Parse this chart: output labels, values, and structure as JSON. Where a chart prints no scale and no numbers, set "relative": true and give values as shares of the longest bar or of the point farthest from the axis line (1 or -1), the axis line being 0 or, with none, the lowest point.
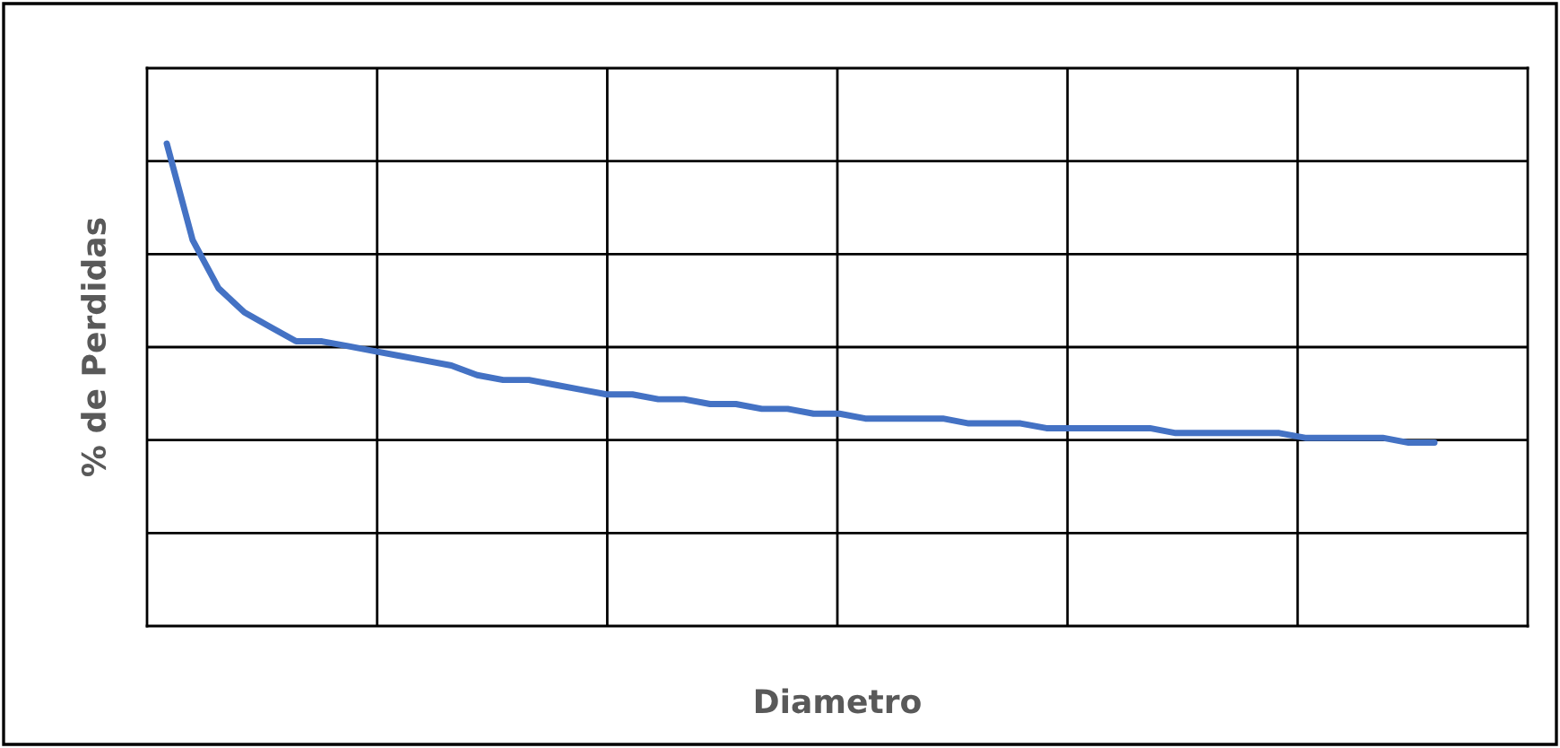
{
  "chart_data": {
    "type": "line",
    "relative": true,
    "xlabel": "Diametro",
    "ylabel": "% de Perdidas",
    "grid": true,
    "marker": "none",
    "line_style": "solid",
    "categories": [
      null,
      null,
      null,
      null,
      null,
      null,
      null,
      null,
      null,
      null,
      null,
      null,
      null,
      null,
      null,
      null,
      null,
      null,
      null,
      null,
      null,
      null,
      null,
      null,
      null,
      null,
      null,
      null,
      null,
      null,
      null,
      null,
      null,
      null,
      null,
      null,
      null,
      null,
      null,
      null,
      null,
      null,
      null,
      null,
      null,
      null,
      null,
      null,
      null,
      null
    ],
    "series": [
      {
        "color": "#4472c4",
        "values": [
          1,
          0.8,
          0.7,
          0.65,
          0.62,
          0.59,
          0.59,
          0.58,
          0.57,
          0.56,
          0.55,
          0.54,
          0.52,
          0.51,
          0.51,
          0.5,
          0.49,
          0.48,
          0.48,
          0.47,
          0.47,
          0.46,
          0.46,
          0.45,
          0.45,
          0.44,
          0.44,
          0.43,
          0.43,
          0.43,
          0.43,
          0.42,
          0.42,
          0.42,
          0.41,
          0.41,
          0.41,
          0.41,
          0.41,
          0.4,
          0.4,
          0.4,
          0.4,
          0.4,
          0.39,
          0.39,
          0.39,
          0.39,
          0.38,
          0.38
        ]
      }
    ]
  }
}
